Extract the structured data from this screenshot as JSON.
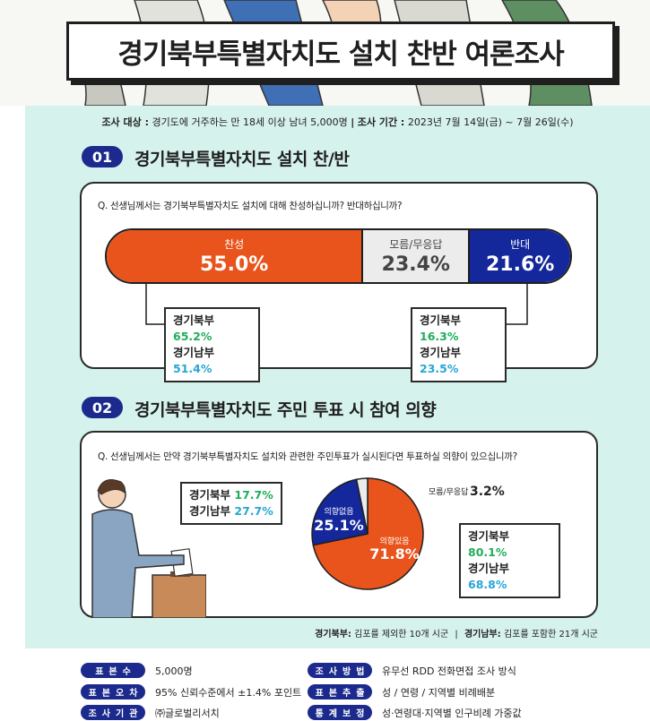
{
  "title": "경기북부특별자치도 설치 찬반 여론조사",
  "survey": {
    "target_label": "조사 대상 :",
    "target_value": "경기도에 거주하는 만 18세 이상 남녀 5,000명",
    "separator": "|",
    "period_label": "조사 기간 :",
    "period_value": "2023년 7월 14일(금) ~ 7월 26일(수)"
  },
  "section1": {
    "number": "01",
    "title": "경기북부특별자치도 설치 찬/반",
    "question": "Q. 선생님께서는 경기북부특별자치도 설치에 대해 찬성하십니까? 반대하십니까?",
    "favor_breakdown": [
      {
        "region": "경기북부",
        "value": "65.2%"
      },
      {
        "region": "경기남부",
        "value": "51.4%"
      }
    ],
    "oppose_breakdown": [
      {
        "region": "경기북부",
        "value": "16.3%"
      },
      {
        "region": "경기남부",
        "value": "23.5%"
      }
    ]
  },
  "section2": {
    "number": "02",
    "title": "경기북부특별자치도 주민 투표 시 참여 의향",
    "question": "Q. 선생님께서는 만약 경기북부특별자치도 설치와 관련한 주민투표가 실시된다면 투표하실 의향이 있으십니까?",
    "no_intent_breakdown": [
      {
        "region": "경기북부",
        "value": "17.7%"
      },
      {
        "region": "경기남부",
        "value": "27.7%"
      }
    ],
    "intent_breakdown": [
      {
        "region": "경기북부",
        "value": "80.1%"
      },
      {
        "region": "경기남부",
        "value": "68.8%"
      }
    ]
  },
  "footnote": {
    "north_label": "경기북부:",
    "north_text": "김포를 제외한 10개 시군",
    "separator": "|",
    "south_label": "경기남부:",
    "south_text": "김포를 포함한 21개 시군"
  },
  "meta": [
    {
      "label": "표본수",
      "value": "5,000명"
    },
    {
      "label": "조사방법",
      "value": "유무선 RDD 전화면접 조사 방식"
    },
    {
      "label": "표본오차",
      "value": "95% 신뢰수준에서 ±1.4% 포인트"
    },
    {
      "label": "표본추출",
      "value": "성 / 연령 / 지역별 비례배분"
    },
    {
      "label": "조사기관",
      "value": "㈜글로벌리서치"
    },
    {
      "label": "통계보정",
      "value": "성·연령대·지역별 인구비례 가중값"
    }
  ],
  "colors": {
    "orange": "#e8541c",
    "navy": "#14279b",
    "gray": "#ececec",
    "mint": "#d6f2ec",
    "green": "#1fae5a",
    "blue": "#28a6d6"
  },
  "chart_data": [
    {
      "type": "bar",
      "categories": [
        "찬성",
        "모름/무응답",
        "반대"
      ],
      "values": [
        55.0,
        23.4,
        21.6
      ],
      "value_labels": [
        "55.0%",
        "23.4%",
        "21.6%"
      ]
    },
    {
      "type": "pie",
      "categories": [
        "의향있음",
        "의향없음",
        "모름/무응답"
      ],
      "values": [
        71.8,
        25.1,
        3.2
      ],
      "value_labels": [
        "71.8%",
        "25.1%",
        "3.2%"
      ]
    }
  ]
}
